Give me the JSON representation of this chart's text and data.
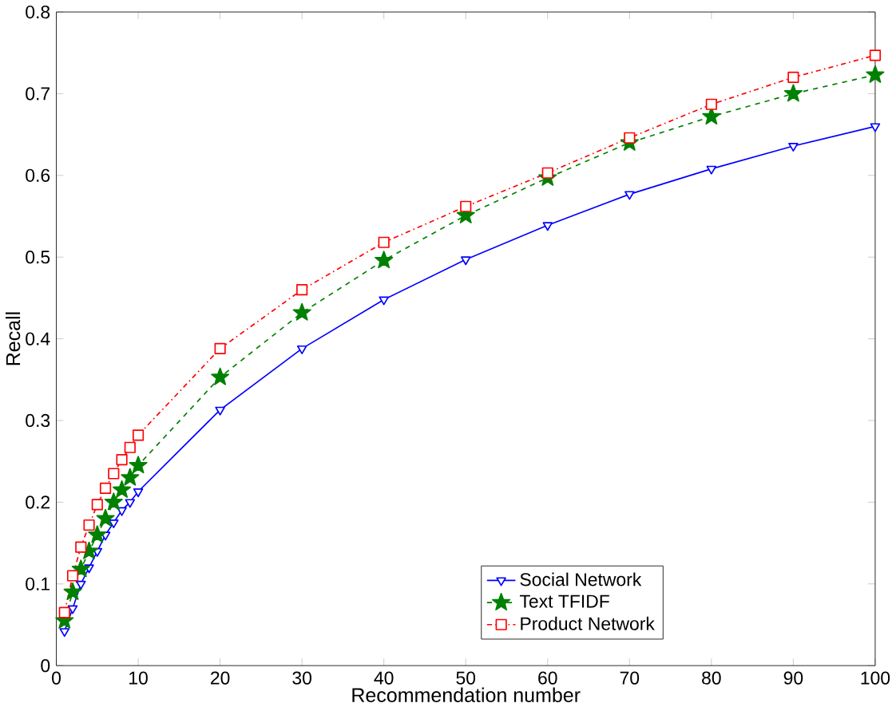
{
  "chart_data": {
    "type": "line",
    "xlabel": "Recommendation number",
    "ylabel": "Recall",
    "x": [
      1,
      2,
      3,
      4,
      5,
      6,
      7,
      8,
      9,
      10,
      20,
      30,
      40,
      50,
      60,
      70,
      80,
      90,
      100
    ],
    "series": [
      {
        "name": "Social Network",
        "color": "#0000ff",
        "marker": "triangle",
        "line_style": "solid",
        "values": [
          0.042,
          0.07,
          0.1,
          0.12,
          0.14,
          0.16,
          0.175,
          0.19,
          0.2,
          0.213,
          0.313,
          0.388,
          0.448,
          0.497,
          0.539,
          0.577,
          0.608,
          0.636,
          0.66
        ]
      },
      {
        "name": "Text TFIDF",
        "color": "#008000",
        "marker": "star",
        "line_style": "dashed",
        "values": [
          0.055,
          0.09,
          0.118,
          0.14,
          0.16,
          0.18,
          0.2,
          0.215,
          0.23,
          0.245,
          0.353,
          0.432,
          0.496,
          0.551,
          0.597,
          0.64,
          0.672,
          0.7,
          0.723
        ]
      },
      {
        "name": "Product Network",
        "color": "#ff0000",
        "marker": "square",
        "line_style": "dashdot",
        "values": [
          0.065,
          0.11,
          0.145,
          0.172,
          0.197,
          0.217,
          0.235,
          0.252,
          0.267,
          0.282,
          0.388,
          0.46,
          0.518,
          0.562,
          0.603,
          0.646,
          0.687,
          0.72,
          0.747
        ]
      }
    ],
    "xlim": [
      0,
      100
    ],
    "xticks": [
      0,
      10,
      20,
      30,
      40,
      50,
      60,
      70,
      80,
      90,
      100
    ],
    "ylim": [
      0,
      0.8
    ],
    "yticks": [
      0,
      0.1,
      0.2,
      0.3,
      0.4,
      0.5,
      0.6,
      0.7,
      0.8
    ],
    "grid": false,
    "legend": "bottom"
  }
}
